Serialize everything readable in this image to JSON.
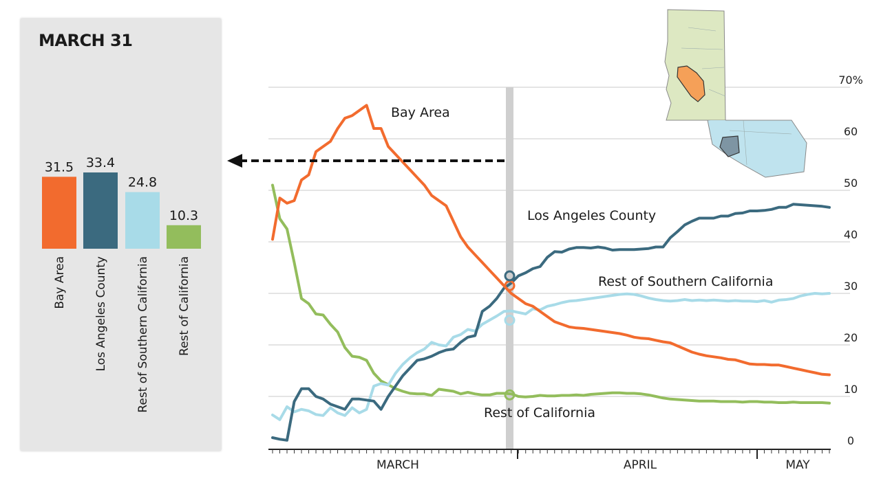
{
  "panel": {
    "title": "MARCH 31",
    "bars": [
      {
        "name": "Bay Area",
        "value": 31.5,
        "value_label": "31.5",
        "color": "#f26b2e"
      },
      {
        "name": "Los Angeles County",
        "value": 33.4,
        "value_label": "33.4",
        "color": "#3b6a7f"
      },
      {
        "name": "Rest of Southern California",
        "value": 24.8,
        "value_label": "24.8",
        "color": "#a8dbe8"
      },
      {
        "name": "Rest of California",
        "value": 10.3,
        "value_label": "10.3",
        "color": "#93bd5c"
      }
    ]
  },
  "chart_data": {
    "type": "line",
    "y_ticks": [
      "70%",
      "60",
      "50",
      "40",
      "30",
      "20",
      "10",
      "0"
    ],
    "ylim": [
      0,
      70
    ],
    "x_labels": [
      "MARCH",
      "APRIL",
      "MAY"
    ],
    "highlight_label": "MARCH 31",
    "grid": true,
    "series": [
      {
        "name": "Bay Area",
        "color": "#f26b2e",
        "values": [
          40.5,
          48.5,
          47.5,
          48,
          52,
          53,
          57.5,
          58.5,
          59.5,
          62,
          64,
          64.5,
          65.5,
          66.5,
          62,
          62,
          58.5,
          57,
          55.5,
          54,
          52.5,
          51,
          49,
          48,
          47,
          44,
          41,
          39,
          37.5,
          36,
          34.5,
          33,
          31.5,
          30,
          29,
          28,
          27.5,
          26.5,
          25.5,
          24.5,
          24,
          23.5,
          23.3,
          23.2,
          23,
          22.8,
          22.6,
          22.4,
          22.2,
          21.9,
          21.5,
          21.3,
          21.2,
          20.9,
          20.6,
          20.4,
          19.8,
          19.2,
          18.6,
          18.2,
          17.9,
          17.7,
          17.5,
          17.2,
          17.1,
          16.7,
          16.3,
          16.2,
          16.2,
          16.1,
          16.1,
          15.8,
          15.5,
          15.2,
          14.9,
          14.6,
          14.3,
          14.2
        ]
      },
      {
        "name": "Los Angeles County",
        "color": "#3b6a7f",
        "values": [
          2,
          1.7,
          1.5,
          9,
          11.5,
          11.5,
          10,
          9.5,
          8.5,
          8,
          7.5,
          9.5,
          9.5,
          9.3,
          9.1,
          7.5,
          10,
          12,
          14,
          15.5,
          17,
          17.3,
          17.8,
          18.5,
          19,
          19.2,
          20.5,
          21.5,
          21.8,
          26.5,
          27.5,
          29,
          31,
          32,
          33.4,
          34,
          34.8,
          35.2,
          37,
          38.1,
          38,
          38.6,
          38.9,
          38.9,
          38.8,
          39,
          38.8,
          38.4,
          38.5,
          38.5,
          38.5,
          38.6,
          38.7,
          39,
          39,
          40.8,
          42,
          43.3,
          44,
          44.6,
          44.6,
          44.6,
          45,
          45,
          45.5,
          45.6,
          46,
          46,
          46.1,
          46.3,
          46.7,
          46.7,
          47.3,
          47.2,
          47.1,
          47,
          46.9,
          46.7
        ]
      },
      {
        "name": "Rest of Southern California",
        "color": "#a8dbe8",
        "values": [
          6.4,
          5.5,
          8,
          7,
          7.5,
          7.2,
          6.5,
          6.3,
          7.8,
          6.8,
          6.3,
          7.8,
          6.8,
          7.5,
          12,
          12.5,
          12.2,
          14.5,
          16.2,
          17.5,
          18.5,
          19.2,
          20.5,
          20,
          19.8,
          21.5,
          22,
          23,
          22.7,
          24,
          24.8,
          25.6,
          26.5,
          26.6,
          26.3,
          26,
          27,
          26.8,
          27.5,
          27.8,
          28.2,
          28.5,
          28.6,
          28.8,
          29,
          29.2,
          29.4,
          29.6,
          29.8,
          29.9,
          29.8,
          29.5,
          29.1,
          28.8,
          28.6,
          28.5,
          28.6,
          28.8,
          28.6,
          28.7,
          28.6,
          28.7,
          28.6,
          28.5,
          28.6,
          28.5,
          28.5,
          28.4,
          28.6,
          28.3,
          28.7,
          28.8,
          29,
          29.5,
          29.8,
          30,
          29.9,
          30
        ]
      },
      {
        "name": "Rest of California",
        "color": "#93bd5c",
        "values": [
          51,
          44.5,
          42.5,
          36,
          29,
          28,
          26,
          25.8,
          24,
          22.5,
          19.5,
          17.8,
          17.6,
          17,
          14.5,
          13,
          12.3,
          11.5,
          11,
          10.6,
          10.5,
          10.5,
          10.2,
          11.4,
          11.2,
          11,
          10.5,
          10.8,
          10.5,
          10.3,
          10.3,
          10.6,
          10.6,
          10.5,
          10,
          9.9,
          10,
          10.2,
          10.1,
          10.1,
          10.2,
          10.2,
          10.3,
          10.2,
          10.4,
          10.5,
          10.6,
          10.7,
          10.7,
          10.6,
          10.6,
          10.5,
          10.3,
          10,
          9.7,
          9.5,
          9.4,
          9.3,
          9.2,
          9.1,
          9.1,
          9.1,
          9,
          9,
          9,
          8.9,
          9,
          9,
          8.9,
          8.9,
          8.8,
          8.8,
          8.9,
          8.8,
          8.8,
          8.8,
          8.8,
          8.7
        ]
      }
    ]
  },
  "callout_arrow_color": "#111111",
  "map_colors": {
    "north": "#dde8c2",
    "south": "#bfe3ee",
    "bay": "#f5a058",
    "la": "#7e95a3"
  }
}
